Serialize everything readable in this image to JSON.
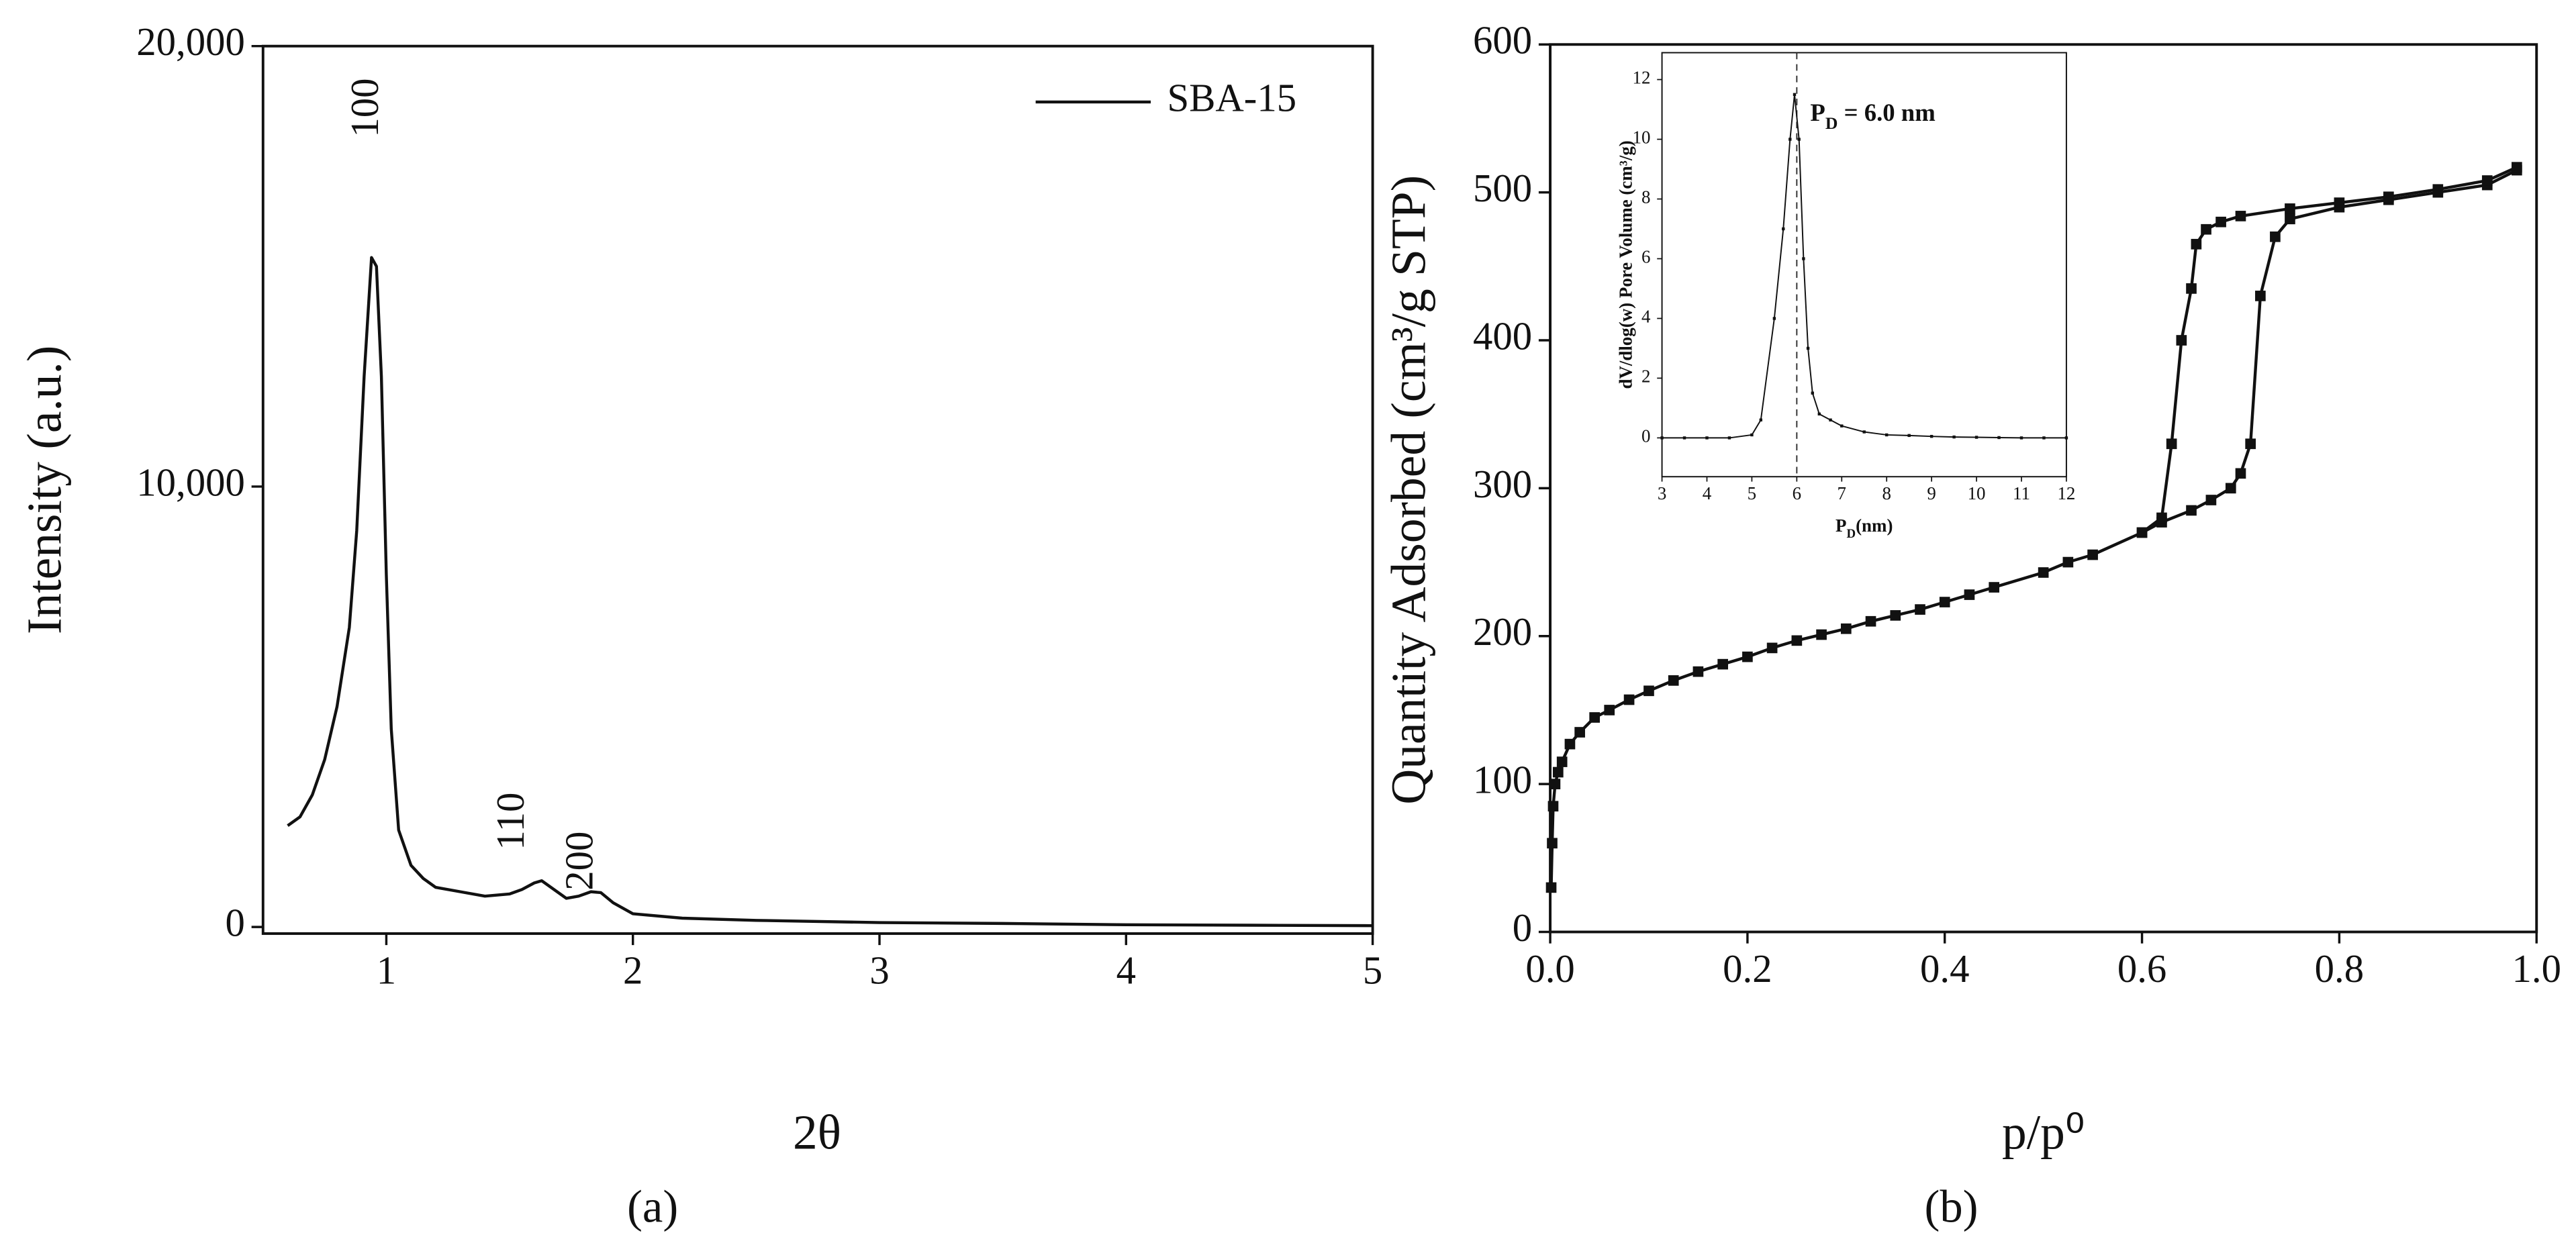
{
  "chart_data": [
    {
      "type": "line",
      "caption": "(a)",
      "xlabel": "2θ",
      "ylabel": "Intensity (a.u.)",
      "xlim": [
        0.5,
        5
      ],
      "ylim": [
        -150,
        20000
      ],
      "xticks": [
        1,
        2,
        3,
        4,
        5
      ],
      "yticks": [
        0,
        {
          "value": 10000,
          "label": "10,000"
        },
        {
          "value": 20000,
          "label": "20,000"
        }
      ],
      "legend": "upper right",
      "markers": "none",
      "series": [
        {
          "name": "SBA-15",
          "color": "#111111",
          "x": [
            0.6,
            0.65,
            0.7,
            0.75,
            0.8,
            0.85,
            0.88,
            0.91,
            0.94,
            0.96,
            0.98,
            1.0,
            1.02,
            1.05,
            1.1,
            1.15,
            1.2,
            1.3,
            1.4,
            1.5,
            1.55,
            1.6,
            1.63,
            1.68,
            1.73,
            1.78,
            1.83,
            1.87,
            1.92,
            2.0,
            2.2,
            2.5,
            3.0,
            3.5,
            4.0,
            4.5,
            5.0
          ],
          "values": [
            2300,
            2500,
            3000,
            3800,
            5000,
            6800,
            9000,
            12500,
            15200,
            15000,
            12500,
            8000,
            4500,
            2200,
            1400,
            1100,
            900,
            800,
            700,
            750,
            850,
            1000,
            1050,
            850,
            650,
            700,
            800,
            780,
            550,
            300,
            200,
            150,
            100,
            80,
            50,
            40,
            30
          ]
        }
      ],
      "annotations": [
        {
          "text": "100",
          "x": 0.93,
          "y": 18600,
          "rotate": -90
        },
        {
          "text": "110",
          "x": 1.52,
          "y": 2400,
          "rotate": -90
        },
        {
          "text": "200",
          "x": 1.8,
          "y": 1500,
          "rotate": -90
        }
      ]
    },
    {
      "type": "line",
      "caption": "(b)",
      "xlabel": "p/p⁰",
      "ylabel": "Quantity Adsorbed (cm³/g STP)",
      "xlim": [
        0,
        1
      ],
      "ylim": [
        0,
        600
      ],
      "xticks": [
        {
          "value": 0,
          "label": "0.0"
        },
        {
          "value": 0.2,
          "label": "0.2"
        },
        {
          "value": 0.4,
          "label": "0.4"
        },
        {
          "value": 0.6,
          "label": "0.6"
        },
        {
          "value": 0.8,
          "label": "0.8"
        },
        {
          "value": 1,
          "label": "1.0"
        }
      ],
      "yticks": [
        0,
        100,
        200,
        300,
        400,
        500,
        600
      ],
      "markers": "square",
      "series": [
        {
          "color": "#111111",
          "x": [
            0.001,
            0.002,
            0.003,
            0.005,
            0.008,
            0.012,
            0.02,
            0.03,
            0.045,
            0.06,
            0.08,
            0.1,
            0.125,
            0.15,
            0.175,
            0.2,
            0.225,
            0.25,
            0.275,
            0.3,
            0.325,
            0.35,
            0.375,
            0.4,
            0.425,
            0.45,
            0.5,
            0.525,
            0.55,
            0.6,
            0.62,
            0.65,
            0.67,
            0.69,
            0.7,
            0.71,
            0.72,
            0.735,
            0.75,
            0.8,
            0.85,
            0.9,
            0.95,
            0.98
          ],
          "values": [
            30,
            60,
            85,
            100,
            108,
            115,
            127,
            135,
            145,
            150,
            157,
            163,
            170,
            176,
            181,
            186,
            192,
            197,
            201,
            205,
            210,
            214,
            218,
            223,
            228,
            233,
            243,
            250,
            255,
            270,
            277,
            285,
            292,
            300,
            310,
            330,
            430,
            470,
            482,
            490,
            495,
            500,
            505,
            515
          ]
        },
        {
          "color": "#111111",
          "x": [
            0.98,
            0.95,
            0.9,
            0.85,
            0.8,
            0.75,
            0.7,
            0.68,
            0.665,
            0.655,
            0.65,
            0.64,
            0.63,
            0.62,
            0.6
          ],
          "values": [
            517,
            508,
            502,
            497,
            493,
            489,
            484,
            480,
            475,
            465,
            435,
            400,
            330,
            280,
            270
          ]
        }
      ]
    },
    {
      "type": "line",
      "xlabel": [
        "P",
        "D",
        "(nm)"
      ],
      "ylabel": "dV/dlog(w) Pore Volume (cm³/g)",
      "xlim": [
        3,
        12
      ],
      "ylim": [
        -1.3,
        12.9
      ],
      "xticks": [
        3,
        4,
        5,
        6,
        7,
        8,
        9,
        10,
        11,
        12
      ],
      "yticks": [
        0,
        2,
        4,
        6,
        8,
        10,
        12
      ],
      "markers": "dot",
      "vline": 6,
      "series": [
        {
          "color": "#111111",
          "x": [
            3,
            3.5,
            4,
            4.5,
            5,
            5.2,
            5.5,
            5.7,
            5.85,
            5.95,
            6.05,
            6.15,
            6.25,
            6.35,
            6.5,
            6.75,
            7,
            7.5,
            8,
            8.5,
            9,
            9.5,
            10,
            10.5,
            11,
            11.5,
            12
          ],
          "values": [
            0,
            0,
            0,
            0,
            0.1,
            0.6,
            4,
            7,
            10,
            11.5,
            10,
            6,
            3,
            1.5,
            0.8,
            0.6,
            0.4,
            0.2,
            0.1,
            0.08,
            0.05,
            0.03,
            0.02,
            0.01,
            0,
            0,
            0
          ]
        }
      ],
      "annotations": [
        {
          "text": [
            "P",
            "D",
            " = 6.0 nm"
          ],
          "x": 6.3,
          "y": 10.8,
          "rotate": 0
        }
      ]
    }
  ]
}
